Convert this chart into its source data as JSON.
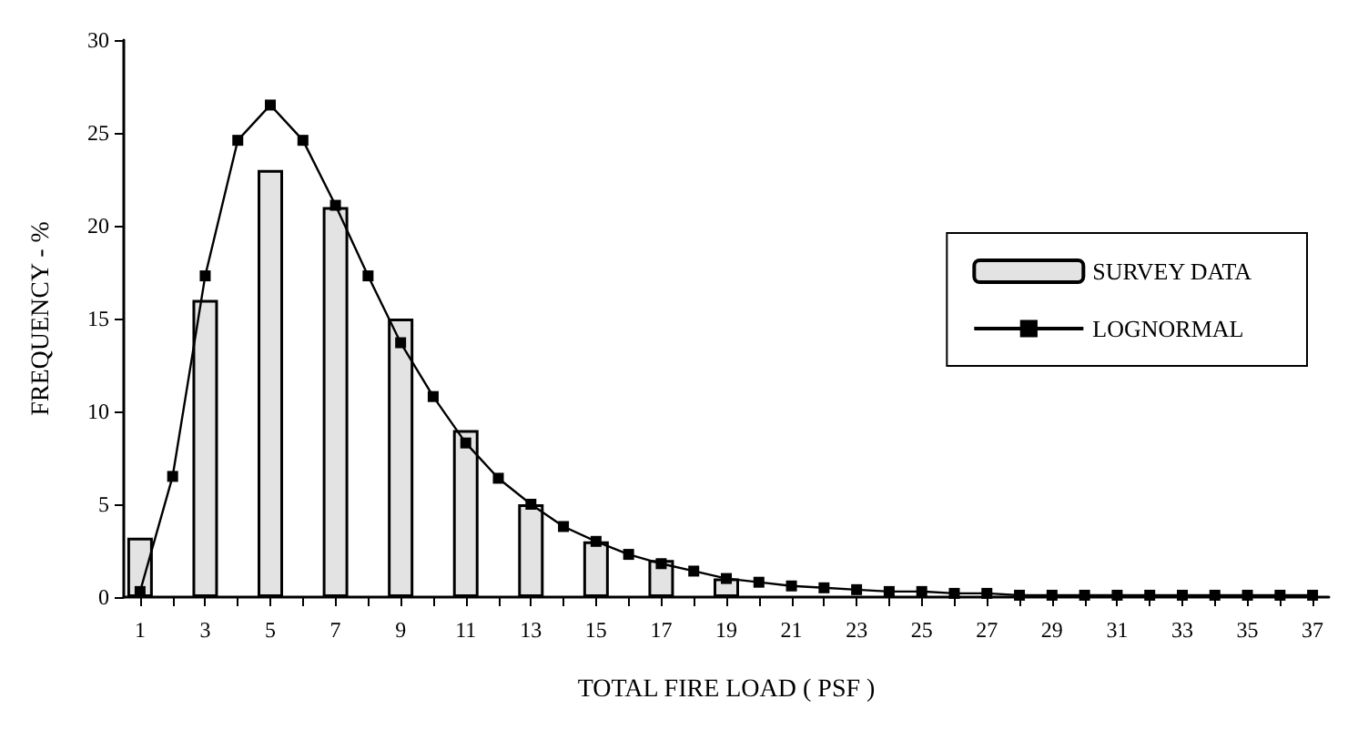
{
  "chart_data": {
    "type": "bar",
    "xlabel": "TOTAL FIRE LOAD ( PSF )",
    "ylabel": "FREQUENCY - %",
    "series": [
      {
        "name": "SURVEY DATA",
        "color": "#e3e3e3",
        "x": [
          1,
          3,
          5,
          7,
          9,
          11,
          13,
          15,
          17,
          19
        ],
        "values": [
          3.2,
          16,
          23,
          21,
          15,
          9,
          5,
          3,
          2,
          1
        ]
      },
      {
        "name": "LOGNORMAL",
        "type": "line",
        "color": "#000000",
        "marker": "square",
        "x": [
          1,
          2,
          3,
          4,
          5,
          6,
          7,
          8,
          9,
          10,
          11,
          12,
          13,
          14,
          15,
          16,
          17,
          18,
          19,
          20,
          21,
          22,
          23,
          24,
          25,
          26,
          27,
          28,
          29,
          30,
          31,
          32,
          33,
          34,
          35,
          36,
          37
        ],
        "values": [
          0.3,
          6.5,
          17.3,
          24.6,
          26.5,
          24.6,
          21.1,
          17.3,
          13.7,
          10.8,
          8.3,
          6.4,
          5.0,
          3.8,
          3.0,
          2.3,
          1.8,
          1.4,
          1.0,
          0.8,
          0.6,
          0.5,
          0.4,
          0.3,
          0.3,
          0.2,
          0.2,
          0.1,
          0.1,
          0.1,
          0.1,
          0.1,
          0.1,
          0.1,
          0.1,
          0.1,
          0.1
        ]
      }
    ],
    "xlim": [
      0.5,
      37.5
    ],
    "xticks": [
      1,
      {
        "value": 2,
        "label": null
      },
      3,
      {
        "value": 4,
        "label": null
      },
      5,
      {
        "value": 6,
        "label": null
      },
      7,
      {
        "value": 8,
        "label": null
      },
      9,
      {
        "value": 10,
        "label": null
      },
      11,
      {
        "value": 12,
        "label": null
      },
      13,
      {
        "value": 14,
        "label": null
      },
      15,
      {
        "value": 16,
        "label": null
      },
      17,
      {
        "value": 18,
        "label": null
      },
      19,
      {
        "value": 20,
        "label": null
      },
      21,
      {
        "value": 22,
        "label": null
      },
      23,
      {
        "value": 24,
        "label": null
      },
      25,
      {
        "value": 26,
        "label": null
      },
      27,
      {
        "value": 28,
        "label": null
      },
      29,
      {
        "value": 30,
        "label": null
      },
      31,
      {
        "value": 32,
        "label": null
      },
      33,
      {
        "value": 34,
        "label": null
      },
      35,
      {
        "value": 36,
        "label": null
      },
      37
    ],
    "ylim": [
      0,
      30
    ],
    "yticks": [
      0,
      5,
      10,
      15,
      20,
      25,
      30
    ],
    "grid": false,
    "legend": "top right"
  }
}
